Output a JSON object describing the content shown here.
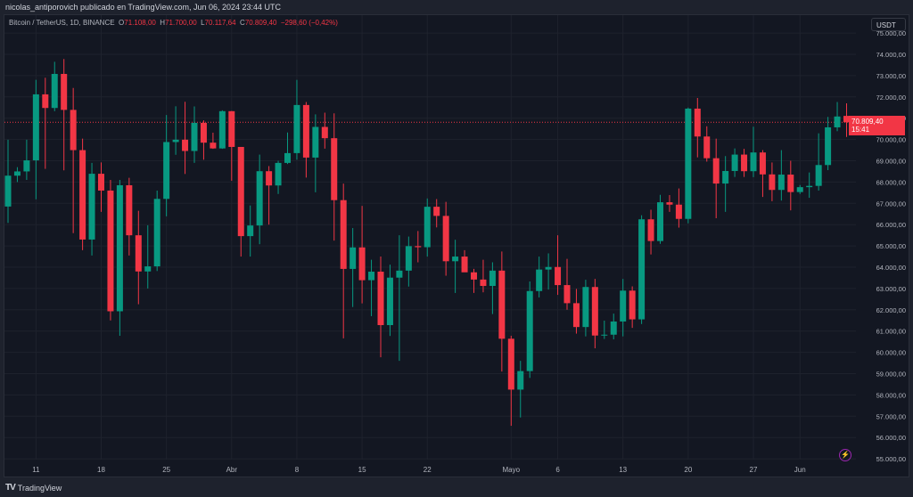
{
  "header": {
    "published": "nicolas_antiporovich publicado en TradingView.com, Jun 06, 2024 23:44 UTC"
  },
  "legend": {
    "symbol": "Bitcoin / TetherUS, 1D, BINANCE",
    "o_label": "O",
    "o": "71.108,00",
    "h_label": "H",
    "h": "71.700,00",
    "l_label": "L",
    "l": "70.117,64",
    "c_label": "C",
    "c": "70.809,40",
    "change": "−298,60 (−0,42%)"
  },
  "currency_button": "USDT",
  "last_price": {
    "price": "70.809,40",
    "countdown": "15:41"
  },
  "footer": {
    "logo": "TV",
    "brand": "TradingView"
  },
  "colors": {
    "up": "#089981",
    "down": "#f23645",
    "grid": "#1e222d",
    "background": "#131722"
  },
  "chart_data": {
    "type": "candlestick",
    "title": "Bitcoin / TetherUS, 1D, BINANCE",
    "ylim": [
      54600,
      75400
    ],
    "y_ticks": [
      "55.000,00",
      "56.000,00",
      "57.000,00",
      "58.000,00",
      "59.000,00",
      "60.000,00",
      "61.000,00",
      "62.000,00",
      "63.000,00",
      "64.000,00",
      "65.000,00",
      "66.000,00",
      "67.000,00",
      "68.000,00",
      "69.000,00",
      "70.000,00",
      "71.000,00",
      "72.000,00",
      "73.000,00",
      "74.000,00",
      "75.000,00"
    ],
    "y_tick_values": [
      55000,
      56000,
      57000,
      58000,
      59000,
      60000,
      61000,
      62000,
      63000,
      64000,
      65000,
      66000,
      67000,
      68000,
      69000,
      70000,
      71000,
      72000,
      73000,
      74000,
      75000
    ],
    "x_ticks": [
      {
        "label": "11",
        "index": 3
      },
      {
        "label": "18",
        "index": 10
      },
      {
        "label": "25",
        "index": 17
      },
      {
        "label": "Abr",
        "index": 24
      },
      {
        "label": "8",
        "index": 31
      },
      {
        "label": "15",
        "index": 38
      },
      {
        "label": "22",
        "index": 45
      },
      {
        "label": "Mayo",
        "index": 54
      },
      {
        "label": "6",
        "index": 59
      },
      {
        "label": "13",
        "index": 66
      },
      {
        "label": "20",
        "index": 73
      },
      {
        "label": "27",
        "index": 80
      },
      {
        "label": "Jun",
        "index": 85
      }
    ],
    "ohlc": [
      [
        66850,
        69990,
        66080,
        68300
      ],
      [
        68300,
        68700,
        68000,
        68500
      ],
      [
        68500,
        69990,
        68100,
        69020
      ],
      [
        69020,
        72800,
        67190,
        72120
      ],
      [
        72120,
        72900,
        68620,
        71480
      ],
      [
        71480,
        73650,
        71330,
        73080
      ],
      [
        73080,
        73780,
        68550,
        71390
      ],
      [
        71390,
        72420,
        65600,
        69500
      ],
      [
        69500,
        70040,
        64800,
        65300
      ],
      [
        65300,
        68900,
        64550,
        68390
      ],
      [
        68390,
        68920,
        66600,
        67600
      ],
      [
        67600,
        68100,
        61500,
        61930
      ],
      [
        61930,
        68100,
        60780,
        67850
      ],
      [
        67850,
        68200,
        64550,
        65500
      ],
      [
        65500,
        66650,
        62260,
        63800
      ],
      [
        63800,
        65970,
        63000,
        64040
      ],
      [
        64040,
        67600,
        63820,
        67210
      ],
      [
        67210,
        71150,
        66390,
        69880
      ],
      [
        69880,
        71560,
        69280,
        69990
      ],
      [
        69990,
        71770,
        68380,
        69460
      ],
      [
        69460,
        71550,
        68900,
        70780
      ],
      [
        70780,
        70900,
        69050,
        69850
      ],
      [
        69850,
        70320,
        69560,
        69580
      ],
      [
        69580,
        71370,
        69560,
        71330
      ],
      [
        71330,
        71340,
        68060,
        69650
      ],
      [
        69650,
        69650,
        64500,
        65460
      ],
      [
        65460,
        66900,
        64500,
        65960
      ],
      [
        65960,
        69290,
        65080,
        68510
      ],
      [
        68510,
        68750,
        66000,
        67840
      ],
      [
        67840,
        69000,
        67440,
        68900
      ],
      [
        68900,
        70330,
        68850,
        69360
      ],
      [
        69360,
        72800,
        69050,
        71620
      ],
      [
        71620,
        71760,
        68210,
        69150
      ],
      [
        69150,
        71180,
        67520,
        70590
      ],
      [
        70590,
        71260,
        69570,
        70060
      ],
      [
        70060,
        71230,
        65250,
        67150
      ],
      [
        67150,
        67930,
        60660,
        63920
      ],
      [
        63920,
        65840,
        62130,
        64930
      ],
      [
        64930,
        66880,
        62300,
        63390
      ],
      [
        63390,
        64350,
        61700,
        63790
      ],
      [
        63790,
        64500,
        59770,
        61280
      ],
      [
        61280,
        64120,
        60770,
        63510
      ],
      [
        63510,
        65500,
        59600,
        63840
      ],
      [
        63840,
        65440,
        63090,
        64990
      ],
      [
        64990,
        65700,
        64230,
        64940
      ],
      [
        64940,
        67230,
        64500,
        66840
      ],
      [
        66840,
        67200,
        65870,
        66410
      ],
      [
        66410,
        67070,
        63600,
        64280
      ],
      [
        64280,
        65290,
        62790,
        64500
      ],
      [
        64500,
        64800,
        63780,
        63760
      ],
      [
        63760,
        63920,
        62790,
        63420
      ],
      [
        63420,
        64350,
        62820,
        63120
      ],
      [
        63120,
        64230,
        61800,
        63840
      ],
      [
        63840,
        64740,
        59100,
        60640
      ],
      [
        60640,
        60780,
        56550,
        58250
      ],
      [
        58250,
        59600,
        56940,
        59120
      ],
      [
        59120,
        63330,
        58800,
        62880
      ],
      [
        62880,
        64500,
        62580,
        63890
      ],
      [
        63890,
        64650,
        62950,
        64010
      ],
      [
        64010,
        65500,
        62700,
        63160
      ],
      [
        63160,
        64390,
        62000,
        62310
      ],
      [
        62310,
        62980,
        60880,
        61190
      ],
      [
        61190,
        63410,
        60750,
        63070
      ],
      [
        63070,
        63450,
        60190,
        60790
      ],
      [
        60790,
        61490,
        60630,
        60830
      ],
      [
        60830,
        61820,
        60610,
        61450
      ],
      [
        61450,
        63450,
        60750,
        62900
      ],
      [
        62900,
        63100,
        61150,
        61550
      ],
      [
        61550,
        66440,
        61330,
        66250
      ],
      [
        66250,
        66700,
        64600,
        65230
      ],
      [
        65230,
        67400,
        65100,
        67050
      ],
      [
        67050,
        67390,
        66600,
        66940
      ],
      [
        66940,
        67700,
        65860,
        66270
      ],
      [
        66270,
        71500,
        66060,
        71450
      ],
      [
        71450,
        71950,
        69160,
        70140
      ],
      [
        70140,
        70620,
        68960,
        69120
      ],
      [
        69120,
        70040,
        66300,
        67930
      ],
      [
        67930,
        69220,
        66600,
        68520
      ],
      [
        68520,
        69580,
        68240,
        69290
      ],
      [
        69290,
        69560,
        68240,
        68510
      ],
      [
        68510,
        70600,
        68230,
        69390
      ],
      [
        69390,
        69500,
        67300,
        68360
      ],
      [
        68360,
        68920,
        67100,
        67630
      ],
      [
        67630,
        69500,
        67130,
        68350
      ],
      [
        68350,
        69000,
        66670,
        67530
      ],
      [
        67530,
        67860,
        67440,
        67760
      ],
      [
        67760,
        68450,
        67260,
        67820
      ],
      [
        67820,
        70290,
        67600,
        68800
      ],
      [
        68800,
        71060,
        68560,
        70570
      ],
      [
        70570,
        71760,
        70390,
        71080
      ],
      [
        71108,
        71700,
        70117,
        70809
      ]
    ],
    "last_close": 70809.4,
    "grid": true
  }
}
